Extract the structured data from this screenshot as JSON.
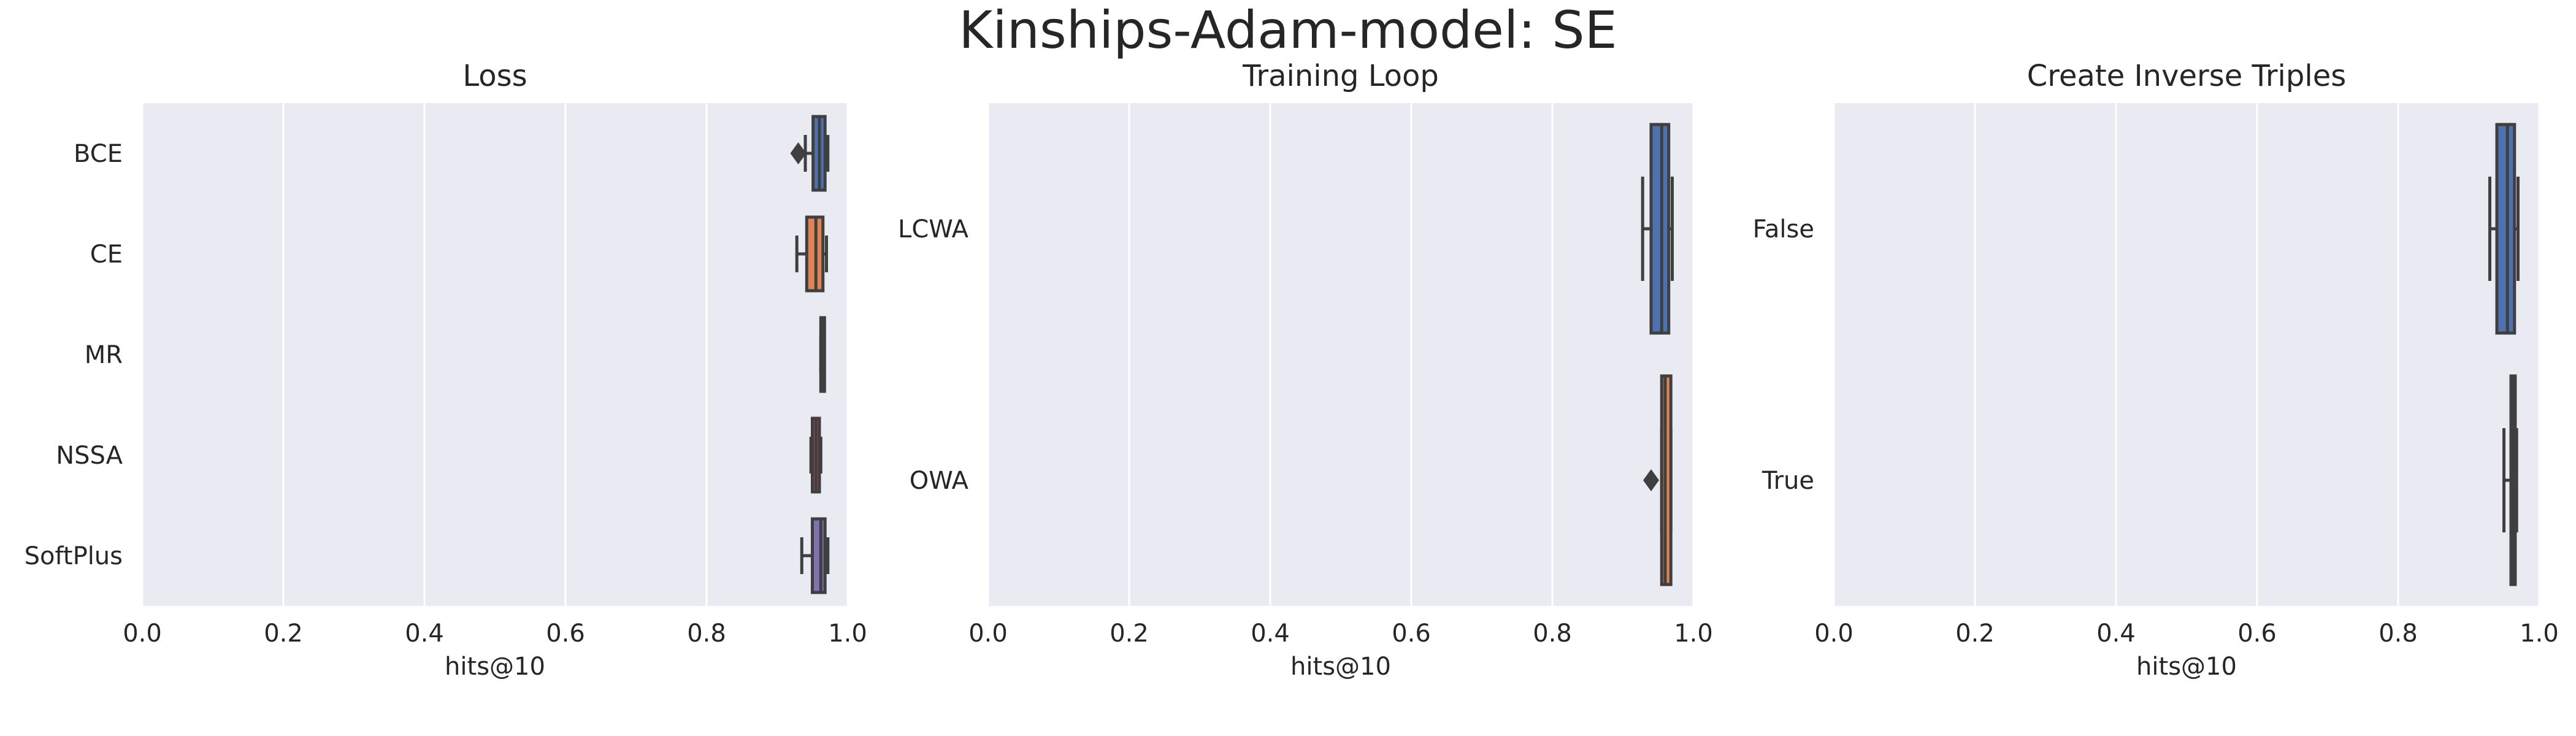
{
  "figure": {
    "title": "Kinships-Adam-model: SE"
  },
  "chart_data": [
    {
      "type": "box",
      "orientation": "horizontal",
      "title": "Loss",
      "xlabel": "hits@10",
      "ylabel": "",
      "xlim": [
        0.0,
        1.0
      ],
      "xticks": [
        "0.0",
        "0.2",
        "0.4",
        "0.6",
        "0.8",
        "1.0"
      ],
      "grid": true,
      "categories": [
        "BCE",
        "CE",
        "MR",
        "NSSA",
        "SoftPlus"
      ],
      "colors": [
        "#4c72b0",
        "#dd8452",
        "#55a868",
        "#c44e52",
        "#8172b3"
      ],
      "boxes": [
        {
          "category": "BCE",
          "whisker_low": 0.94,
          "q1": 0.951,
          "median": 0.96,
          "q3": 0.968,
          "whisker_high": 0.972,
          "outliers": [
            0.93
          ]
        },
        {
          "category": "CE",
          "whisker_low": 0.928,
          "q1": 0.942,
          "median": 0.955,
          "q3": 0.965,
          "whisker_high": 0.97,
          "outliers": []
        },
        {
          "category": "MR",
          "whisker_low": 0.962,
          "q1": 0.962,
          "median": 0.963,
          "q3": 0.964,
          "whisker_high": 0.964,
          "outliers": []
        },
        {
          "category": "NSSA",
          "whisker_low": 0.948,
          "q1": 0.95,
          "median": 0.955,
          "q3": 0.96,
          "whisker_high": 0.962,
          "outliers": []
        },
        {
          "category": "SoftPlus",
          "whisker_low": 0.935,
          "q1": 0.95,
          "median": 0.962,
          "q3": 0.968,
          "whisker_high": 0.972,
          "outliers": []
        }
      ]
    },
    {
      "type": "box",
      "orientation": "horizontal",
      "title": "Training Loop",
      "xlabel": "hits@10",
      "ylabel": "",
      "xlim": [
        0.0,
        1.0
      ],
      "xticks": [
        "0.0",
        "0.2",
        "0.4",
        "0.6",
        "0.8",
        "1.0"
      ],
      "grid": true,
      "categories": [
        "LCWA",
        "OWA"
      ],
      "colors": [
        "#4c72b0",
        "#dd8452"
      ],
      "boxes": [
        {
          "category": "LCWA",
          "whisker_low": 0.928,
          "q1": 0.94,
          "median": 0.955,
          "q3": 0.965,
          "whisker_high": 0.97,
          "outliers": []
        },
        {
          "category": "OWA",
          "whisker_low": 0.955,
          "q1": 0.955,
          "median": 0.96,
          "q3": 0.968,
          "whisker_high": 0.968,
          "outliers": [
            0.94
          ]
        }
      ]
    },
    {
      "type": "box",
      "orientation": "horizontal",
      "title": "Create Inverse Triples",
      "xlabel": "hits@10",
      "ylabel": "",
      "xlim": [
        0.0,
        1.0
      ],
      "xticks": [
        "0.0",
        "0.2",
        "0.4",
        "0.6",
        "0.8",
        "1.0"
      ],
      "grid": true,
      "categories": [
        "False",
        "True"
      ],
      "colors": [
        "#4c72b0",
        "#dd8452"
      ],
      "boxes": [
        {
          "category": "False",
          "whisker_low": 0.93,
          "q1": 0.94,
          "median": 0.955,
          "q3": 0.965,
          "whisker_high": 0.97,
          "outliers": []
        },
        {
          "category": "True",
          "whisker_low": 0.95,
          "q1": 0.96,
          "median": 0.963,
          "q3": 0.966,
          "whisker_high": 0.968,
          "outliers": []
        }
      ]
    }
  ]
}
